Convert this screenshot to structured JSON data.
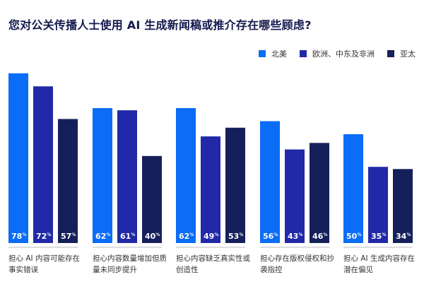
{
  "chart_data": {
    "type": "bar",
    "title": "您对公关传播人士使用 AI 生成新闻稿或推介存在哪些顾虑?",
    "categories": [
      "担心 AI 内容可能存在事实错误",
      "担心内容数量增加但质量未同步提升",
      "担心内容缺乏真实性或创造性",
      "担心存在版权侵权和抄袭指控",
      "担心 AI 生成内容存在潜在偏见"
    ],
    "series": [
      {
        "name": "北美",
        "color": "#0b6cf6",
        "values": [
          78,
          62,
          62,
          56,
          50
        ]
      },
      {
        "name": "欧洲、中东及非洲",
        "color": "#2129a8",
        "values": [
          72,
          61,
          49,
          43,
          35
        ]
      },
      {
        "name": "亚太",
        "color": "#15205a",
        "values": [
          57,
          40,
          53,
          46,
          34
        ]
      }
    ],
    "unit": "%",
    "ylim": [
      0,
      80
    ],
    "grid": false,
    "legend": "top-right"
  }
}
